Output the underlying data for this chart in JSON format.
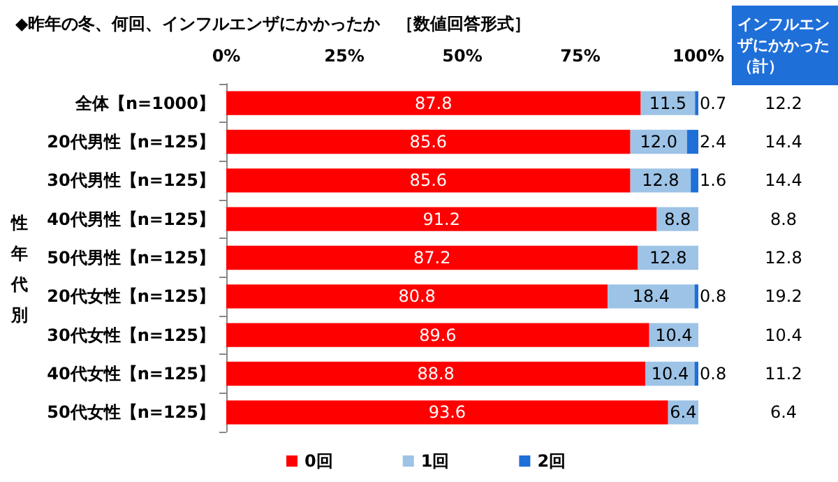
{
  "chart_data": {
    "type": "bar",
    "orientation": "horizontal",
    "stacked": true,
    "title": "◆昨年の冬、何回、インフルエンザにかかったか　［数値回答形式］",
    "categories": [
      "全体【n=1000】",
      "20代男性【n=125】",
      "30代男性【n=125】",
      "40代男性【n=125】",
      "50代男性【n=125】",
      "20代女性【n=125】",
      "30代女性【n=125】",
      "40代女性【n=125】",
      "50代女性【n=125】"
    ],
    "series": [
      {
        "name": "0回",
        "color": "#ff0000",
        "values": [
          87.8,
          85.6,
          85.6,
          91.2,
          87.2,
          80.8,
          89.6,
          88.8,
          93.6
        ],
        "value_labels": [
          "87.8",
          "85.6",
          "85.6",
          "91.2",
          "87.2",
          "80.8",
          "89.6",
          "88.8",
          "93.6"
        ]
      },
      {
        "name": "1回",
        "color": "#9dc3e6",
        "values": [
          11.5,
          12.0,
          12.8,
          8.8,
          12.8,
          18.4,
          10.4,
          10.4,
          6.4
        ],
        "value_labels": [
          "11.5",
          "12.0",
          "12.8",
          "8.8",
          "12.8",
          "18.4",
          "10.4",
          "10.4",
          "6.4"
        ]
      },
      {
        "name": "2回",
        "color": "#1f6fd8",
        "values": [
          0.7,
          2.4,
          1.6,
          null,
          null,
          0.8,
          null,
          0.8,
          null
        ],
        "value_labels": [
          "0.7",
          "2.4",
          "1.6",
          null,
          null,
          "0.8",
          null,
          "0.8",
          null
        ]
      }
    ],
    "xlim": [
      0,
      100
    ],
    "xticks": [
      {
        "value": 0,
        "label": "0%"
      },
      {
        "value": 25,
        "label": "25%"
      },
      {
        "value": 50,
        "label": "50%"
      },
      {
        "value": 75,
        "label": "75%"
      },
      {
        "value": 100,
        "label": "100%"
      }
    ],
    "grid": false,
    "legend": "bottom",
    "annotations": [
      "性年代別",
      "インフルエンザにかかった（計）",
      "12.2",
      "14.4",
      "14.4",
      "8.8",
      "12.8",
      "19.2",
      "10.4",
      "11.2",
      "6.4"
    ]
  }
}
